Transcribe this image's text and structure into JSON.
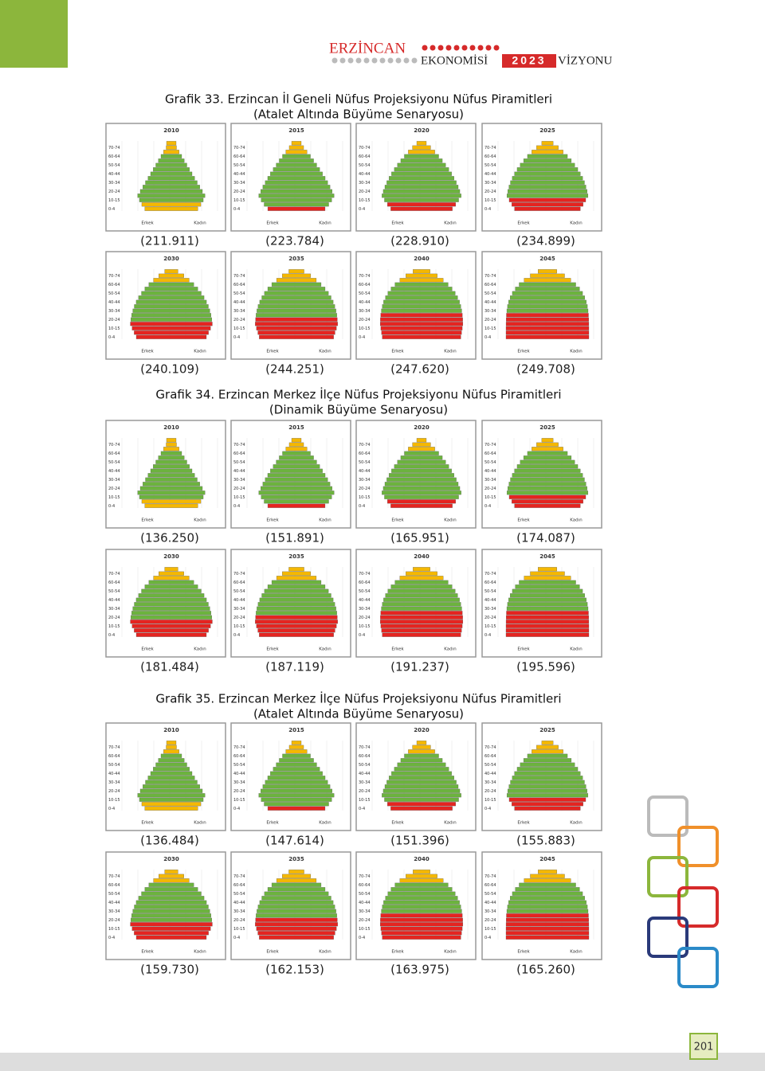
{
  "header": {
    "brand": "ERZİNCAN",
    "line_a": "EKONOMİSİ",
    "line_b": "2023",
    "line_c": "VİZYONU"
  },
  "pyramid_labels": {
    "male": "Erkek",
    "female": "Kadın",
    "age_groups": [
      "0-4",
      "10-15",
      "20-24",
      "30-34",
      "40-44",
      "50-54",
      "60-64",
      "70-74"
    ]
  },
  "sections": [
    {
      "title": "Grafik 33. Erzincan İl Geneli Nüfus Projeksiyonu Nüfus Piramitleri",
      "subtitle": "(Atalet Altında Büyüme Senaryosu)",
      "pyramids": [
        {
          "year": "2010",
          "population": "(211.911)"
        },
        {
          "year": "2015",
          "population": "(223.784)"
        },
        {
          "year": "2020",
          "population": "(228.910)"
        },
        {
          "year": "2025",
          "population": "(234.899)"
        },
        {
          "year": "2030",
          "population": "(240.109)"
        },
        {
          "year": "2035",
          "population": "(244.251)"
        },
        {
          "year": "2040",
          "population": "(247.620)"
        },
        {
          "year": "2045",
          "population": "(249.708)"
        }
      ]
    },
    {
      "title": "Grafik 34. Erzincan Merkez İlçe Nüfus Projeksiyonu Nüfus Piramitleri",
      "subtitle": "(Dinamik Büyüme Senaryosu)",
      "pyramids": [
        {
          "year": "2010",
          "population": "(136.250)"
        },
        {
          "year": "2015",
          "population": "(151.891)"
        },
        {
          "year": "2020",
          "population": "(165.951)"
        },
        {
          "year": "2025",
          "population": "(174.087)"
        },
        {
          "year": "2030",
          "population": "(181.484)"
        },
        {
          "year": "2035",
          "population": "(187.119)"
        },
        {
          "year": "2040",
          "population": "(191.237)"
        },
        {
          "year": "2045",
          "population": "(195.596)"
        }
      ]
    },
    {
      "title": "Grafik 35. Erzincan Merkez İlçe Nüfus Projeksiyonu Nüfus Piramitleri",
      "subtitle": "(Atalet Altında Büyüme Senaryosu)",
      "pyramids": [
        {
          "year": "2010",
          "population": "(136.484)"
        },
        {
          "year": "2015",
          "population": "(147.614)"
        },
        {
          "year": "2020",
          "population": "(151.396)"
        },
        {
          "year": "2025",
          "population": "(155.883)"
        },
        {
          "year": "2030",
          "population": "(159.730)"
        },
        {
          "year": "2035",
          "population": "(162.153)"
        },
        {
          "year": "2040",
          "population": "(163.975)"
        },
        {
          "year": "2045",
          "population": "(165.260)"
        }
      ]
    }
  ],
  "page_number": "201"
}
